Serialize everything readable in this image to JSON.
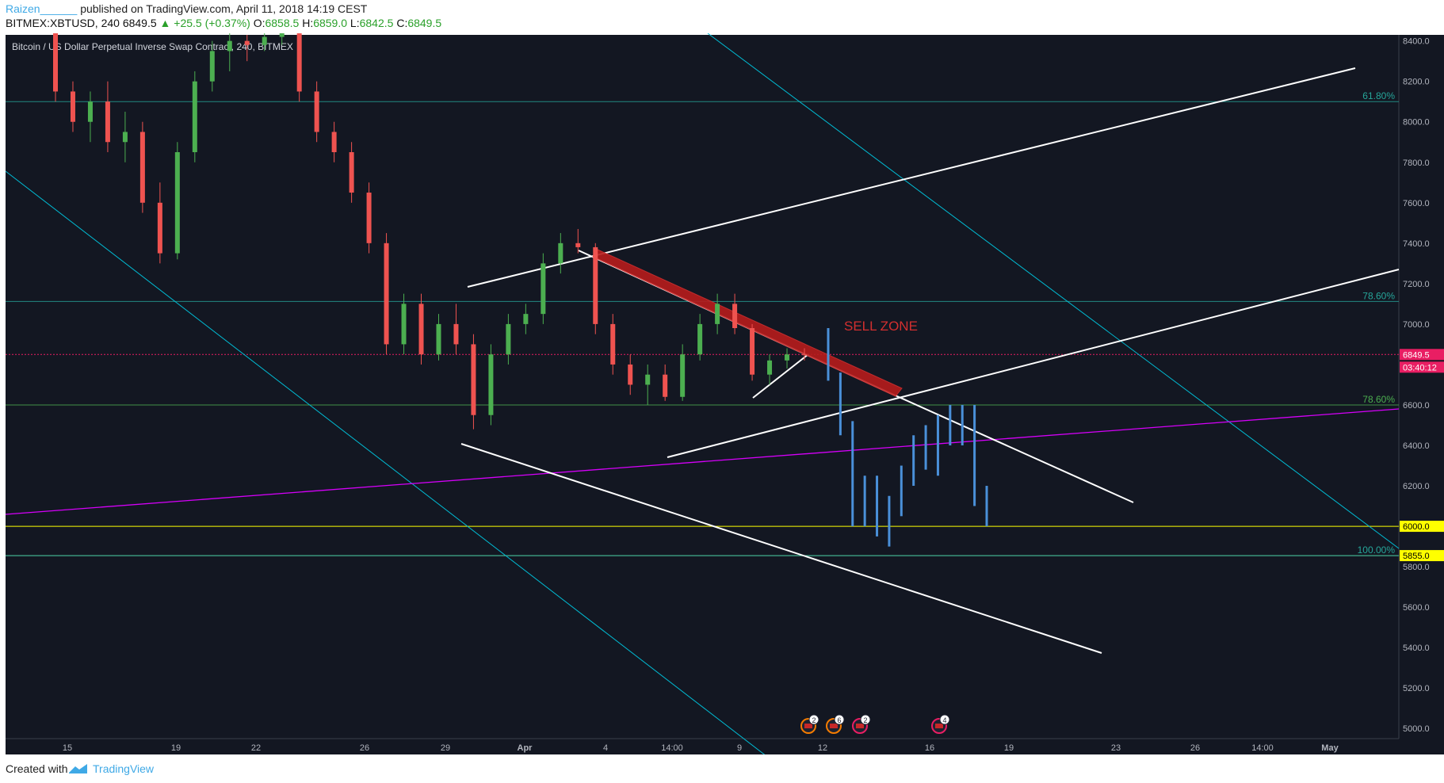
{
  "header": {
    "author": "Raizen______",
    "published": "published on TradingView.com, April 11, 2018 14:19 CEST",
    "symbol": "BITMEX:XBTUSD, 240",
    "last": "6849.5",
    "change": "+25.5 (+0.37%)",
    "o_label": "O:",
    "o_value": "6858.5",
    "h_label": "H:",
    "h_value": "6859.0",
    "l_label": "L:",
    "l_value": "6842.5",
    "c_label": "C:",
    "c_value": "6849.5"
  },
  "chart_data": {
    "type": "candlestick",
    "title": "Bitcoin / US Dollar Perpetual Inverse Swap Contract, 240, BITMEX",
    "y_range": [
      4950,
      8430
    ],
    "y_ticks": [
      "8400.0",
      "8200.0",
      "8000.0",
      "7800.0",
      "7600.0",
      "7400.0",
      "7200.0",
      "7000.0",
      "6800.0",
      "6600.0",
      "6400.0",
      "6200.0",
      "6000.0",
      "5800.0",
      "5600.0",
      "5400.0",
      "5200.0",
      "5000.0"
    ],
    "x_ticks": [
      "15",
      "19",
      "22",
      "26",
      "29",
      "Apr",
      "4",
      "14:00",
      "9",
      "12",
      "16",
      "19",
      "23",
      "26",
      "14:00",
      "May"
    ],
    "price_badges": [
      {
        "label": "6849.5",
        "bg": "#e91e63",
        "color": "#ffffff"
      },
      {
        "label": "03:40:12",
        "bg": "#e91e63",
        "color": "#ffffff"
      },
      {
        "label": "6000.0",
        "bg": "#ffff00",
        "color": "#000000"
      },
      {
        "label": "5855.0",
        "bg": "#ffff00",
        "color": "#000000"
      }
    ],
    "fib_levels": [
      {
        "label": "61.80%",
        "price": 8100,
        "color": "#26a69a"
      },
      {
        "label": "78.60%",
        "price": 7112,
        "color": "#26a69a"
      },
      {
        "label": "78.60%",
        "price": 6600,
        "color": "#4caf50"
      },
      {
        "label": "100.00%",
        "price": 5855,
        "color": "#26a69a"
      }
    ],
    "horizontal_lines": [
      {
        "price": 6000,
        "color": "#ffff00"
      },
      {
        "price": 5855,
        "color": "#90ee90"
      },
      {
        "price": 6849.5,
        "color": "#e91e63",
        "dashed": true
      }
    ],
    "annotation": "SELL ZONE",
    "colors": {
      "bg": "#131722",
      "up": "#4caf50",
      "down": "#ef5350",
      "projection": "#4a90d9",
      "trend": "#ffffff",
      "channel": "#00bcd4",
      "magenta": "#d500f9",
      "sell_zone": "#b71c1c"
    },
    "event_markers": [
      {
        "count": "2",
        "color": "#f57c00"
      },
      {
        "count": "6",
        "color": "#f57c00"
      },
      {
        "count": "2",
        "color": "#e91e63"
      },
      {
        "count": "4",
        "color": "#e91e63"
      }
    ],
    "candles_approx": [
      [
        8450,
        8470,
        8100,
        8150
      ],
      [
        8150,
        8200,
        7950,
        8000
      ],
      [
        8000,
        8150,
        7900,
        8100
      ],
      [
        8100,
        8200,
        7850,
        7900
      ],
      [
        7900,
        8050,
        7800,
        7950
      ],
      [
        7950,
        8000,
        7550,
        7600
      ],
      [
        7600,
        7700,
        7300,
        7350
      ],
      [
        7350,
        7900,
        7320,
        7850
      ],
      [
        7850,
        8250,
        7800,
        8200
      ],
      [
        8200,
        8400,
        8150,
        8350
      ],
      [
        8350,
        8450,
        8250,
        8400
      ],
      [
        8400,
        8430,
        8300,
        8380
      ],
      [
        8380,
        8450,
        8350,
        8420
      ],
      [
        8420,
        8500,
        8380,
        8450
      ],
      [
        8450,
        8480,
        8100,
        8150
      ],
      [
        8150,
        8200,
        7900,
        7950
      ],
      [
        7950,
        8000,
        7800,
        7850
      ],
      [
        7850,
        7900,
        7600,
        7650
      ],
      [
        7650,
        7700,
        7350,
        7400
      ],
      [
        7400,
        7450,
        6850,
        6900
      ],
      [
        6900,
        7150,
        6850,
        7100
      ],
      [
        7100,
        7150,
        6800,
        6850
      ],
      [
        6850,
        7050,
        6820,
        7000
      ],
      [
        7000,
        7100,
        6850,
        6900
      ],
      [
        6900,
        6950,
        6480,
        6550
      ],
      [
        6550,
        6900,
        6500,
        6850
      ],
      [
        6850,
        7050,
        6800,
        7000
      ],
      [
        7000,
        7100,
        6950,
        7050
      ],
      [
        7050,
        7350,
        7000,
        7300
      ],
      [
        7300,
        7450,
        7250,
        7400
      ],
      [
        7400,
        7470,
        7350,
        7380
      ],
      [
        7380,
        7400,
        6950,
        7000
      ],
      [
        7000,
        7050,
        6750,
        6800
      ],
      [
        6800,
        6850,
        6650,
        6700
      ],
      [
        6700,
        6800,
        6600,
        6750
      ],
      [
        6750,
        6800,
        6620,
        6640
      ],
      [
        6640,
        6900,
        6620,
        6850
      ],
      [
        6850,
        7050,
        6820,
        7000
      ],
      [
        7000,
        7150,
        6950,
        7100
      ],
      [
        7100,
        7150,
        6950,
        6980
      ],
      [
        6980,
        7000,
        6720,
        6750
      ],
      [
        6750,
        6850,
        6700,
        6820
      ],
      [
        6820,
        6880,
        6780,
        6850
      ],
      [
        6850,
        6880,
        6820,
        6849.5
      ]
    ],
    "projection_approx": [
      [
        6950,
        6980,
        6720,
        6750
      ],
      [
        6750,
        6760,
        6450,
        6500
      ],
      [
        6500,
        6520,
        6000,
        6050
      ],
      [
        6050,
        6250,
        6000,
        6200
      ],
      [
        6200,
        6250,
        5950,
        6000
      ],
      [
        6000,
        6150,
        5900,
        6100
      ],
      [
        6100,
        6300,
        6050,
        6250
      ],
      [
        6250,
        6450,
        6200,
        6400
      ],
      [
        6400,
        6500,
        6280,
        6300
      ],
      [
        6300,
        6550,
        6250,
        6500
      ],
      [
        6500,
        6600,
        6400,
        6450
      ],
      [
        6450,
        6600,
        6400,
        6550
      ],
      [
        6550,
        6600,
        6100,
        6150
      ],
      [
        6150,
        6200,
        6000,
        6050
      ]
    ]
  },
  "footer": {
    "created": "Created with",
    "brand": "TradingView"
  }
}
